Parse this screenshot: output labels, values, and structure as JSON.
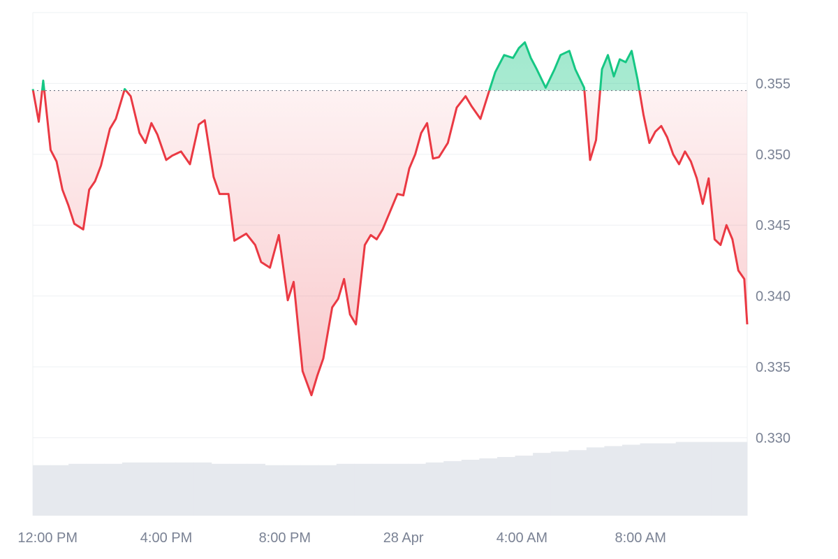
{
  "colors": {
    "up": "#16c784",
    "down": "#ea3943",
    "grid": "#eef0f3",
    "axis_text": "#7a8294",
    "volume": "#e6e9ee",
    "baseline": "#6b7280"
  },
  "chart_data": {
    "type": "line",
    "title": "",
    "xlabel": "",
    "ylabel": "",
    "ylim": [
      0.3245,
      0.36
    ],
    "baseline": 0.3545,
    "yticks": [
      {
        "value": 0.33,
        "label": "0.330"
      },
      {
        "value": 0.335,
        "label": "0.335"
      },
      {
        "value": 0.34,
        "label": "0.340"
      },
      {
        "value": 0.345,
        "label": "0.345"
      },
      {
        "value": 0.35,
        "label": "0.350"
      },
      {
        "value": 0.355,
        "label": "0.355"
      }
    ],
    "xlim_hours": [
      11.5,
      35.6
    ],
    "xticks": [
      {
        "hour": 12,
        "label": "12:00 PM"
      },
      {
        "hour": 16,
        "label": "4:00 PM"
      },
      {
        "hour": 20,
        "label": "8:00 PM"
      },
      {
        "hour": 24,
        "label": "28 Apr"
      },
      {
        "hour": 28,
        "label": "4:00 AM"
      },
      {
        "hour": 32,
        "label": "8:00 AM"
      }
    ],
    "series": [
      {
        "x_hours": [
          11.5,
          11.7,
          11.85,
          12.1,
          12.3,
          12.5,
          12.7,
          12.9,
          13.2,
          13.4,
          13.6,
          13.8,
          14.1,
          14.3,
          14.6,
          14.8,
          15.1,
          15.3,
          15.5,
          15.7,
          16.0,
          16.2,
          16.5,
          16.8,
          17.1,
          17.3,
          17.6,
          17.8,
          18.1,
          18.3,
          18.7,
          19.0,
          19.2,
          19.5,
          19.8,
          20.1,
          20.3,
          20.6,
          20.9,
          21.1,
          21.3,
          21.6,
          21.8,
          22.0,
          22.2,
          22.4,
          22.7,
          22.9,
          23.1,
          23.3,
          23.6,
          23.8,
          24.0,
          24.2,
          24.4,
          24.6,
          24.8,
          25.0,
          25.2,
          25.5,
          25.8,
          26.1,
          26.3,
          26.6,
          26.9,
          27.1,
          27.4,
          27.7,
          27.9,
          28.1,
          28.3,
          28.5,
          28.8,
          29.1,
          29.3,
          29.6,
          29.8,
          30.1,
          30.3,
          30.5,
          30.7,
          30.9,
          31.1,
          31.3,
          31.5,
          31.7,
          31.9,
          32.1,
          32.3,
          32.5,
          32.7,
          32.9,
          33.1,
          33.3,
          33.5,
          33.7,
          33.9,
          34.1,
          34.3,
          34.5,
          34.7,
          34.9,
          35.1,
          35.3,
          35.5,
          35.6
        ],
        "values": [
          0.3546,
          0.3523,
          0.3552,
          0.3503,
          0.3495,
          0.3475,
          0.3464,
          0.3451,
          0.3447,
          0.3475,
          0.3481,
          0.3492,
          0.3518,
          0.3525,
          0.3546,
          0.3541,
          0.3515,
          0.3508,
          0.3522,
          0.3514,
          0.3496,
          0.3499,
          0.3502,
          0.3493,
          0.3521,
          0.3524,
          0.3484,
          0.3472,
          0.3472,
          0.3439,
          0.3444,
          0.3436,
          0.3424,
          0.342,
          0.3443,
          0.3397,
          0.341,
          0.3347,
          0.333,
          0.3344,
          0.3356,
          0.3392,
          0.3398,
          0.3412,
          0.3387,
          0.338,
          0.3436,
          0.3443,
          0.344,
          0.3447,
          0.3462,
          0.3472,
          0.3471,
          0.349,
          0.35,
          0.3515,
          0.3522,
          0.3497,
          0.3498,
          0.3508,
          0.3533,
          0.3541,
          0.3534,
          0.3525,
          0.3545,
          0.3558,
          0.357,
          0.3568,
          0.3575,
          0.3579,
          0.3568,
          0.356,
          0.3547,
          0.356,
          0.357,
          0.3573,
          0.356,
          0.3547,
          0.3496,
          0.351,
          0.356,
          0.357,
          0.3555,
          0.3567,
          0.3565,
          0.3573,
          0.3553,
          0.3528,
          0.3508,
          0.3516,
          0.352,
          0.3512,
          0.35,
          0.3493,
          0.3502,
          0.3495,
          0.3483,
          0.3465,
          0.3483,
          0.344,
          0.3436,
          0.345,
          0.344,
          0.3418,
          0.3412,
          0.338
        ]
      }
    ],
    "volume_relative": [
      0.37,
      0.37,
      0.38,
      0.38,
      0.38,
      0.39,
      0.39,
      0.39,
      0.39,
      0.39,
      0.38,
      0.38,
      0.38,
      0.37,
      0.37,
      0.37,
      0.37,
      0.38,
      0.38,
      0.38,
      0.38,
      0.38,
      0.39,
      0.4,
      0.41,
      0.42,
      0.43,
      0.44,
      0.46,
      0.47,
      0.48,
      0.5,
      0.51,
      0.52,
      0.53,
      0.53,
      0.54,
      0.54,
      0.54,
      0.54
    ],
    "grid": true,
    "legend": "none"
  }
}
